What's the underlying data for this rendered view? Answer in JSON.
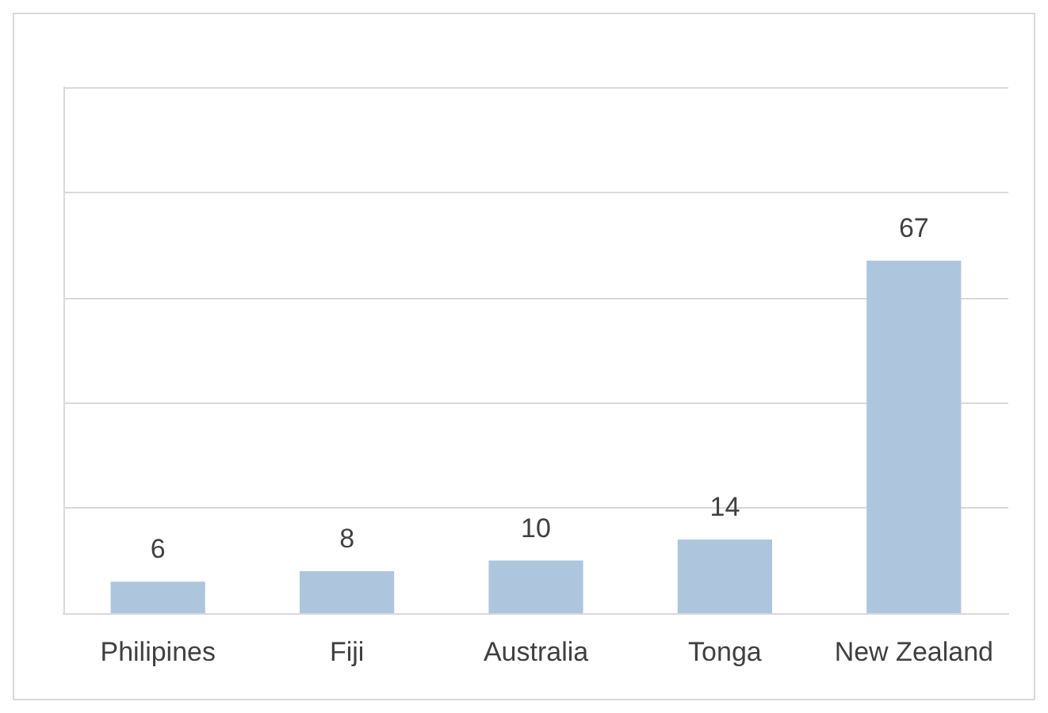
{
  "chart_data": {
    "type": "bar",
    "categories": [
      "Philipines",
      "Fiji",
      "Australia",
      "Tonga",
      "New Zealand"
    ],
    "values": [
      6,
      8,
      10,
      14,
      67
    ],
    "color": "#adc6de",
    "ylim": [
      0,
      100
    ],
    "yticks": [
      {
        "value": 0,
        "label": null
      },
      {
        "value": 20,
        "label": null
      },
      {
        "value": 40,
        "label": null
      },
      {
        "value": 60,
        "label": null
      },
      {
        "value": 80,
        "label": null
      },
      {
        "value": 100,
        "label": null
      }
    ],
    "grid": "y",
    "data_labels": true,
    "tick_labels": "x"
  }
}
